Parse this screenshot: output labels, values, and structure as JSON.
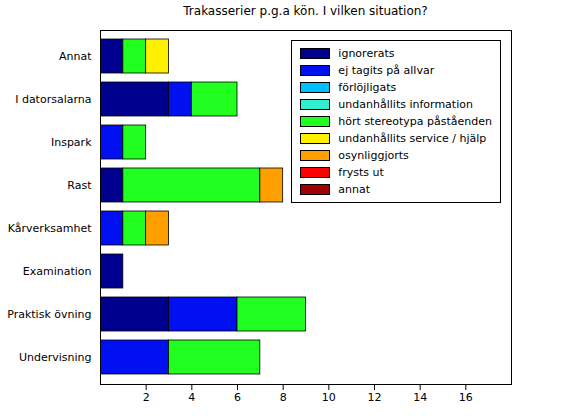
{
  "chart_data": {
    "type": "bar",
    "title": "Trakasserier p.g.a kön. I vilken situation?",
    "orientation": "horizontal",
    "stacked": true,
    "legend": "upper right",
    "categories": [
      "Annat",
      "I datorsalarna",
      "Inspark",
      "Rast",
      "Kårverksamhet",
      "Examination",
      "Praktisk övning",
      "Undervisning"
    ],
    "xlim": [
      0,
      18
    ],
    "xticks": [
      2,
      4,
      6,
      8,
      10,
      12,
      14,
      16
    ],
    "series": [
      {
        "name": "ignorerats",
        "color": "#00008f",
        "values": [
          1,
          3,
          0,
          1,
          0,
          1,
          3,
          0
        ]
      },
      {
        "name": "ej tagits på allvar",
        "color": "#0010f0",
        "values": [
          0,
          1,
          1,
          0,
          1,
          0,
          3,
          3
        ]
      },
      {
        "name": "förlöjligats",
        "color": "#00bfff",
        "values": [
          0,
          0,
          0,
          0,
          0,
          0,
          0,
          0
        ]
      },
      {
        "name": "undanhållits information",
        "color": "#30f0d0",
        "values": [
          0,
          0,
          0,
          0,
          0,
          0,
          0,
          0
        ]
      },
      {
        "name": "hört stereotypa påståenden",
        "color": "#20ff20",
        "values": [
          1,
          2,
          1,
          6,
          1,
          0,
          3,
          4
        ]
      },
      {
        "name": "undanhållits service / hjälp",
        "color": "#ffef00",
        "values": [
          1,
          0,
          0,
          0,
          0,
          0,
          0,
          0
        ]
      },
      {
        "name": "osynliggjorts",
        "color": "#ff9f00",
        "values": [
          0,
          0,
          0,
          1,
          1,
          0,
          0,
          0
        ]
      },
      {
        "name": "frysts ut",
        "color": "#ff0000",
        "values": [
          0,
          0,
          0,
          0,
          0,
          0,
          0,
          0
        ]
      },
      {
        "name": "annat",
        "color": "#9f0000",
        "values": [
          0,
          0,
          0,
          0,
          0,
          0,
          0,
          0
        ]
      }
    ]
  }
}
